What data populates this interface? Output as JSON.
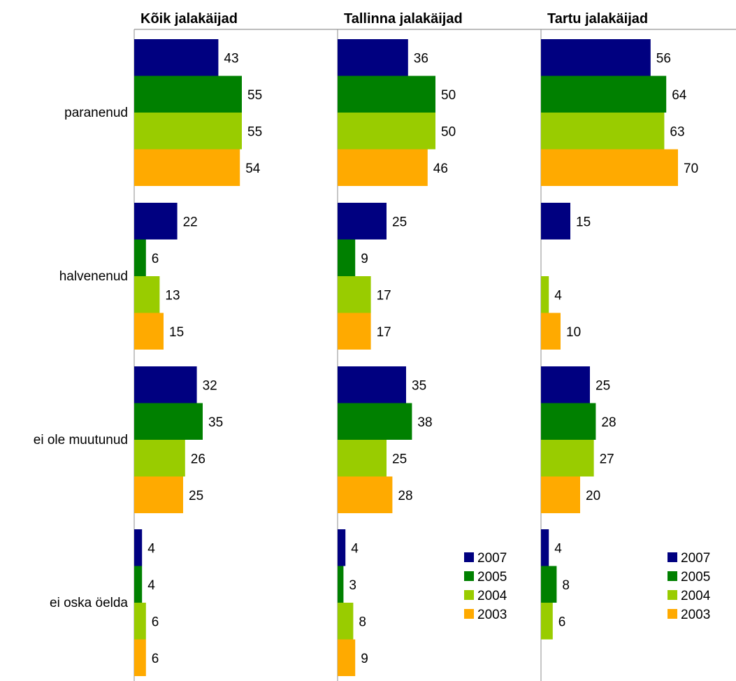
{
  "chart_data": {
    "type": "bar",
    "orientation": "horizontal",
    "categories": [
      "paranenud",
      "halvenenud",
      "ei ole muutunud",
      "ei oska öelda"
    ],
    "series_colors": {
      "2007": "#000080",
      "2005": "#008000",
      "2004": "#99cc00",
      "2003": "#ffaa00"
    },
    "panels": [
      {
        "title": "Kõik jalakäijad",
        "series": [
          {
            "name": "2007",
            "values": [
              43,
              22,
              32,
              4
            ]
          },
          {
            "name": "2005",
            "values": [
              55,
              6,
              35,
              4
            ]
          },
          {
            "name": "2004",
            "values": [
              55,
              13,
              26,
              6
            ]
          },
          {
            "name": "2003",
            "values": [
              54,
              15,
              25,
              6
            ]
          }
        ],
        "legend": false
      },
      {
        "title": "Tallinna jalakäijad",
        "series": [
          {
            "name": "2007",
            "values": [
              36,
              25,
              35,
              4
            ]
          },
          {
            "name": "2005",
            "values": [
              50,
              9,
              38,
              3
            ]
          },
          {
            "name": "2004",
            "values": [
              50,
              17,
              25,
              8
            ]
          },
          {
            "name": "2003",
            "values": [
              46,
              17,
              28,
              9
            ]
          }
        ],
        "legend": true
      },
      {
        "title": "Tartu jalakäijad",
        "series": [
          {
            "name": "2007",
            "values": [
              56,
              15,
              25,
              4
            ]
          },
          {
            "name": "2005",
            "values": [
              64,
              null,
              28,
              8
            ]
          },
          {
            "name": "2004",
            "values": [
              63,
              4,
              27,
              6
            ]
          },
          {
            "name": "2003",
            "values": [
              70,
              10,
              20,
              null
            ]
          }
        ],
        "legend": true
      }
    ],
    "legend_entries": [
      "2007",
      "2005",
      "2004",
      "2003"
    ],
    "legend_placement": "bottom-right of panel",
    "xlim": [
      0,
      100
    ],
    "grid": false
  }
}
